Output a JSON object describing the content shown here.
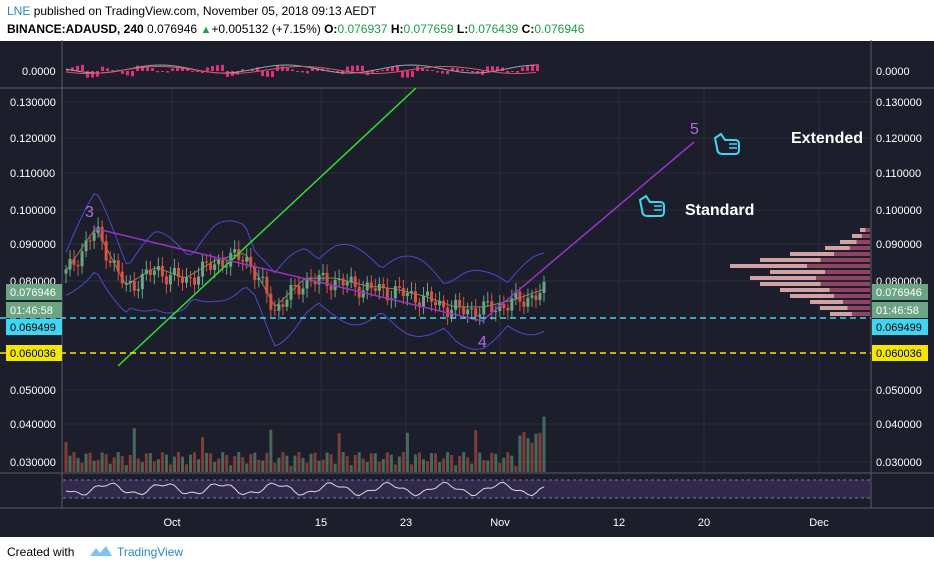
{
  "header": {
    "author": "LNE",
    "published": "published on TradingView.com, November 05, 2018 09:13 AEDT",
    "symbol": "BINANCE:ADAUSD, 240",
    "last": "0.076946",
    "change_arrow": "▲",
    "change": "+0.005132 (+7.15%)",
    "o_label": "O:",
    "o_value": "0.076937",
    "h_label": "H:",
    "h_value": "0.077659",
    "l_label": "L:",
    "l_value": "0.076439",
    "c_label": "C:",
    "c_value": "0.076946"
  },
  "footer": {
    "created_with": "Created with",
    "brand": "TradingView"
  },
  "colors": {
    "background": "#1c1f2b",
    "up": "#6ba583",
    "down": "#d75442",
    "trend_green": "#33dd33",
    "trend_purple": "#9933cc",
    "cyan_level": "#3fd6f2",
    "yellow_level": "#f5e800"
  },
  "chart_data": [
    {
      "type": "line",
      "name": "oscillator-top",
      "ylim": [
        -0.001,
        0.001
      ],
      "yticks": [
        "0.0000",
        "0.0000"
      ]
    },
    {
      "type": "candlestick",
      "name": "main-price",
      "ylim": [
        0.025,
        0.135
      ],
      "yticks": [
        "0.130000",
        "0.120000",
        "0.110000",
        "0.100000",
        "0.090000",
        "0.080000",
        "0.050000",
        "0.040000",
        "0.030000"
      ],
      "xticks": [
        "Oct",
        "15",
        "23",
        "Nov",
        "12",
        "20",
        "Dec"
      ],
      "x": [
        "Sep 20",
        "Sep 24",
        "Sep 28",
        "Oct 2",
        "Oct 6",
        "Oct 10",
        "Oct 12",
        "Oct 14",
        "Oct 16",
        "Oct 18",
        "Oct 21",
        "Oct 24",
        "Oct 27",
        "Oct 30",
        "Nov 1",
        "Nov 3",
        "Nov 5"
      ],
      "close": [
        0.082,
        0.094,
        0.078,
        0.083,
        0.08,
        0.085,
        0.087,
        0.072,
        0.08,
        0.08,
        0.078,
        0.077,
        0.075,
        0.072,
        0.072,
        0.074,
        0.0769
      ],
      "price_labels": {
        "last": "0.076946",
        "countdown": "01:46:58",
        "cyan_level": "0.069499",
        "yellow_level": "0.060036"
      },
      "annotations": {
        "wave_3": "3",
        "wave_4": "4",
        "wave_5": "5",
        "standard_label": "Standard",
        "extended_label": "Extended"
      }
    },
    {
      "type": "line",
      "name": "rsi-bottom"
    }
  ]
}
